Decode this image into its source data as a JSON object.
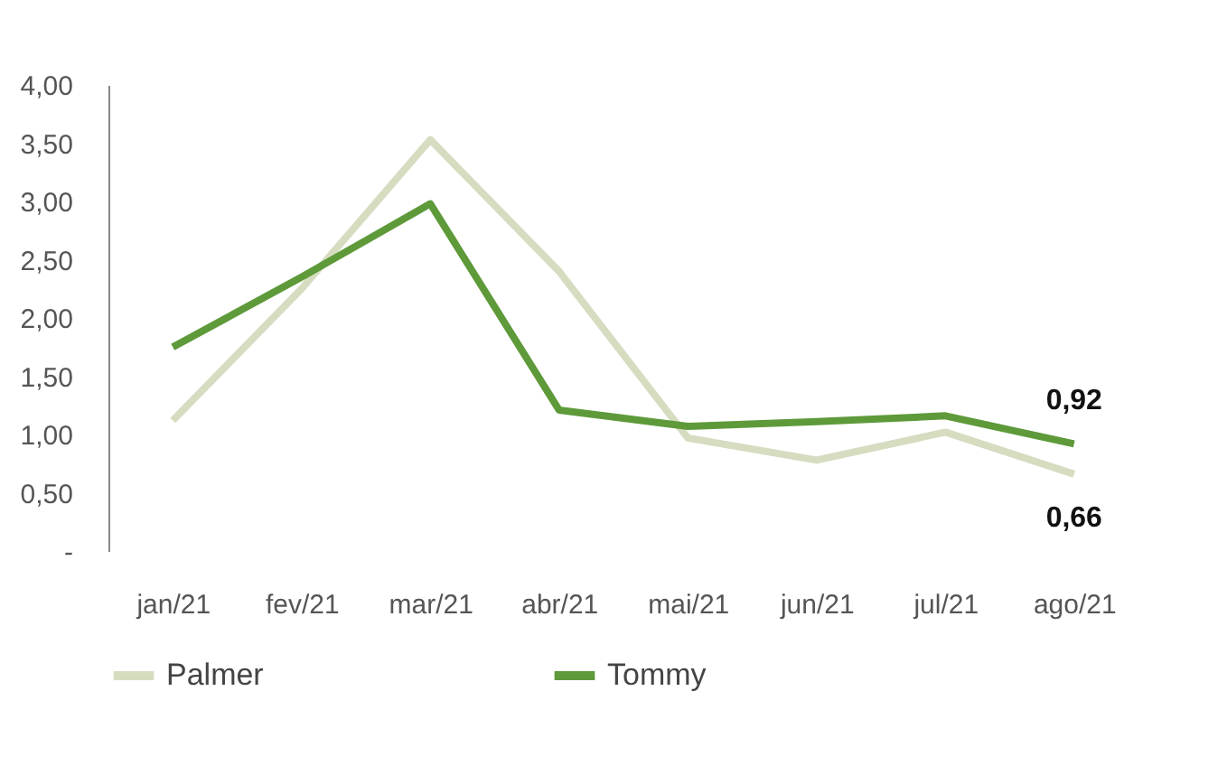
{
  "chart_data": {
    "type": "line",
    "categories": [
      "jan/21",
      "fev/21",
      "mar/21",
      "abr/21",
      "mai/21",
      "jun/21",
      "jul/21",
      "ago/21"
    ],
    "series": [
      {
        "name": "Palmer",
        "color": "#d5dcc0",
        "values": [
          1.12,
          2.25,
          3.53,
          2.4,
          0.97,
          0.78,
          1.02,
          0.66
        ],
        "value_labels": [
          null,
          null,
          null,
          null,
          null,
          null,
          null,
          "0,66"
        ]
      },
      {
        "name": "Tommy",
        "color": "#5e9a3a",
        "values": [
          1.75,
          2.35,
          2.98,
          1.21,
          1.07,
          1.11,
          1.16,
          0.92
        ],
        "value_labels": [
          null,
          null,
          null,
          null,
          null,
          null,
          null,
          "0,92"
        ]
      }
    ],
    "ylim": [
      0,
      4
    ],
    "yticks": [
      {
        "value": 0,
        "label": "-"
      },
      {
        "value": 0.5,
        "label": "0,50"
      },
      {
        "value": 1,
        "label": "1,00"
      },
      {
        "value": 1.5,
        "label": "1,50"
      },
      {
        "value": 2,
        "label": "2,00"
      },
      {
        "value": 2.5,
        "label": "2,50"
      },
      {
        "value": 3,
        "label": "3,00"
      },
      {
        "value": 3.5,
        "label": "3,50"
      },
      {
        "value": 4,
        "label": "4,00"
      }
    ],
    "grid": false,
    "legend": "bottom",
    "marker": "none",
    "line_style": "solid"
  }
}
